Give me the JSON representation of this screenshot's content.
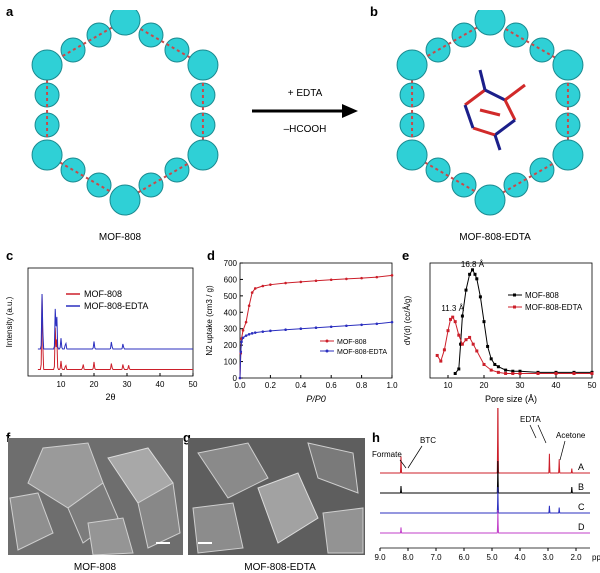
{
  "panels": {
    "a": {
      "label": "a",
      "caption": "MOF-808"
    },
    "b": {
      "label": "b",
      "caption": "MOF-808-EDTA"
    },
    "arrow": {
      "top": "+ EDTA",
      "bottom": "–HCOOH"
    },
    "c": {
      "label": "c"
    },
    "d": {
      "label": "d"
    },
    "e": {
      "label": "e"
    },
    "f": {
      "label": "f",
      "caption": "MOF-808"
    },
    "g": {
      "label": "g",
      "caption": "MOF-808-EDTA"
    },
    "h": {
      "label": "h"
    }
  },
  "colors": {
    "red": "#cc1f2a",
    "blue": "#2b2fbf",
    "black": "#000000",
    "cyan": "#2fd0d6",
    "purple": "#7a1fa0",
    "magenta": "#c23fc9"
  },
  "chart_data": [
    {
      "id": "c",
      "type": "line",
      "xlabel": "2θ",
      "ylabel": "Intensity (a.u.)",
      "xlim": [
        0,
        50
      ],
      "xticks": [
        "10",
        "20",
        "30",
        "40",
        "50"
      ],
      "series": [
        {
          "name": "MOF-808",
          "color": "#cc1f2a",
          "peaks": [
            [
              4.3,
              0.75
            ],
            [
              8.3,
              0.42
            ],
            [
              8.7,
              0.3
            ],
            [
              10.0,
              0.08
            ],
            [
              11.4,
              0.05
            ],
            [
              16.7,
              0.05
            ],
            [
              20.0,
              0.07
            ],
            [
              25.3,
              0.06
            ],
            [
              28.8,
              0.05
            ],
            [
              30.5,
              0.04
            ]
          ],
          "baseline": 0.06
        },
        {
          "name": "MOF-808-EDTA",
          "color": "#2b2fbf",
          "peaks": [
            [
              4.3,
              0.55
            ],
            [
              8.3,
              0.4
            ],
            [
              8.7,
              0.32
            ],
            [
              10.0,
              0.1
            ],
            [
              11.4,
              0.07
            ],
            [
              20.0,
              0.07
            ],
            [
              25.3,
              0.07
            ],
            [
              28.8,
              0.05
            ]
          ],
          "baseline": 0.25
        }
      ]
    },
    {
      "id": "d",
      "type": "line",
      "xlabel": "P/P0",
      "ylabel": "N2 uptake (cm3 / g)",
      "xlim": [
        0,
        1.0
      ],
      "ylim": [
        0,
        700
      ],
      "xticks": [
        "0.0",
        "0.2",
        "0.4",
        "0.6",
        "0.8",
        "1.0"
      ],
      "yticks": [
        "0",
        "100",
        "200",
        "300",
        "400",
        "500",
        "600",
        "700"
      ],
      "series": [
        {
          "name": "MOF-808",
          "color": "#cc1f2a",
          "x": [
            0,
            0.005,
            0.01,
            0.02,
            0.04,
            0.06,
            0.08,
            0.1,
            0.15,
            0.2,
            0.3,
            0.4,
            0.5,
            0.6,
            0.7,
            0.8,
            0.9,
            1.0
          ],
          "y": [
            0,
            150,
            240,
            290,
            340,
            440,
            520,
            545,
            560,
            568,
            578,
            585,
            592,
            598,
            603,
            608,
            614,
            625
          ]
        },
        {
          "name": "MOF-808-EDTA",
          "color": "#2b2fbf",
          "x": [
            0,
            0.005,
            0.01,
            0.02,
            0.04,
            0.06,
            0.08,
            0.1,
            0.15,
            0.2,
            0.3,
            0.4,
            0.5,
            0.6,
            0.7,
            0.8,
            0.9,
            1.0
          ],
          "y": [
            0,
            160,
            220,
            245,
            258,
            266,
            272,
            276,
            282,
            287,
            294,
            300,
            306,
            312,
            318,
            324,
            330,
            340
          ]
        }
      ]
    },
    {
      "id": "e",
      "type": "line",
      "xlabel": "Pore size (Å)",
      "ylabel": "dV(d) (cc/Å/g)",
      "xlim": [
        5,
        50
      ],
      "xticks": [
        "10",
        "20",
        "30",
        "40",
        "50"
      ],
      "annotations": [
        "16.8 Å",
        "11.3 Å"
      ],
      "series": [
        {
          "name": "MOF-808",
          "color": "#000000",
          "x": [
            12,
            13,
            13.5,
            14,
            15,
            16,
            16.8,
            17.5,
            18,
            19,
            20,
            21,
            22,
            23,
            24,
            26,
            28,
            30,
            35,
            40,
            45,
            50
          ],
          "y": [
            0.04,
            0.08,
            0.3,
            0.55,
            0.78,
            0.92,
            0.96,
            0.92,
            0.88,
            0.72,
            0.5,
            0.28,
            0.17,
            0.12,
            0.1,
            0.07,
            0.06,
            0.06,
            0.05,
            0.05,
            0.05,
            0.05
          ]
        },
        {
          "name": "MOF-808-EDTA",
          "color": "#cc1f2a",
          "x": [
            7,
            8,
            9,
            10,
            10.7,
            11.3,
            12,
            13,
            14,
            15,
            16,
            17,
            18,
            20,
            22,
            24,
            26,
            28,
            30,
            35,
            40,
            45,
            50
          ],
          "y": [
            0.2,
            0.15,
            0.25,
            0.42,
            0.52,
            0.54,
            0.5,
            0.38,
            0.3,
            0.34,
            0.36,
            0.3,
            0.24,
            0.12,
            0.07,
            0.05,
            0.04,
            0.04,
            0.04,
            0.04,
            0.04,
            0.04,
            0.04
          ]
        }
      ]
    },
    {
      "id": "h",
      "type": "line",
      "xlabel": "ppm",
      "xlim": [
        9.0,
        1.5
      ],
      "xticks": [
        "9.0",
        "8.0",
        "7.0",
        "6.0",
        "5.0",
        "4.0",
        "3.0",
        "2.0"
      ],
      "annotations": [
        "Formate",
        "BTC",
        "EDTA",
        "Acetone"
      ],
      "series": [
        {
          "name": "A",
          "color": "#cc1f2a",
          "peaks": [
            [
              8.25,
              0.3
            ],
            [
              4.79,
              1.0
            ],
            [
              2.95,
              0.35
            ],
            [
              2.6,
              0.25
            ],
            [
              2.15,
              0.08
            ]
          ]
        },
        {
          "name": "B",
          "color": "#000000",
          "peaks": [
            [
              8.25,
              0.35
            ],
            [
              4.79,
              1.0
            ],
            [
              2.15,
              0.3
            ]
          ]
        },
        {
          "name": "C",
          "color": "#2b2fbf",
          "peaks": [
            [
              4.79,
              0.9
            ],
            [
              2.95,
              0.4
            ],
            [
              2.6,
              0.3
            ]
          ]
        },
        {
          "name": "D",
          "color": "#c23fc9",
          "peaks": [
            [
              8.25,
              0.35
            ],
            [
              4.79,
              0.9
            ]
          ]
        }
      ]
    }
  ]
}
